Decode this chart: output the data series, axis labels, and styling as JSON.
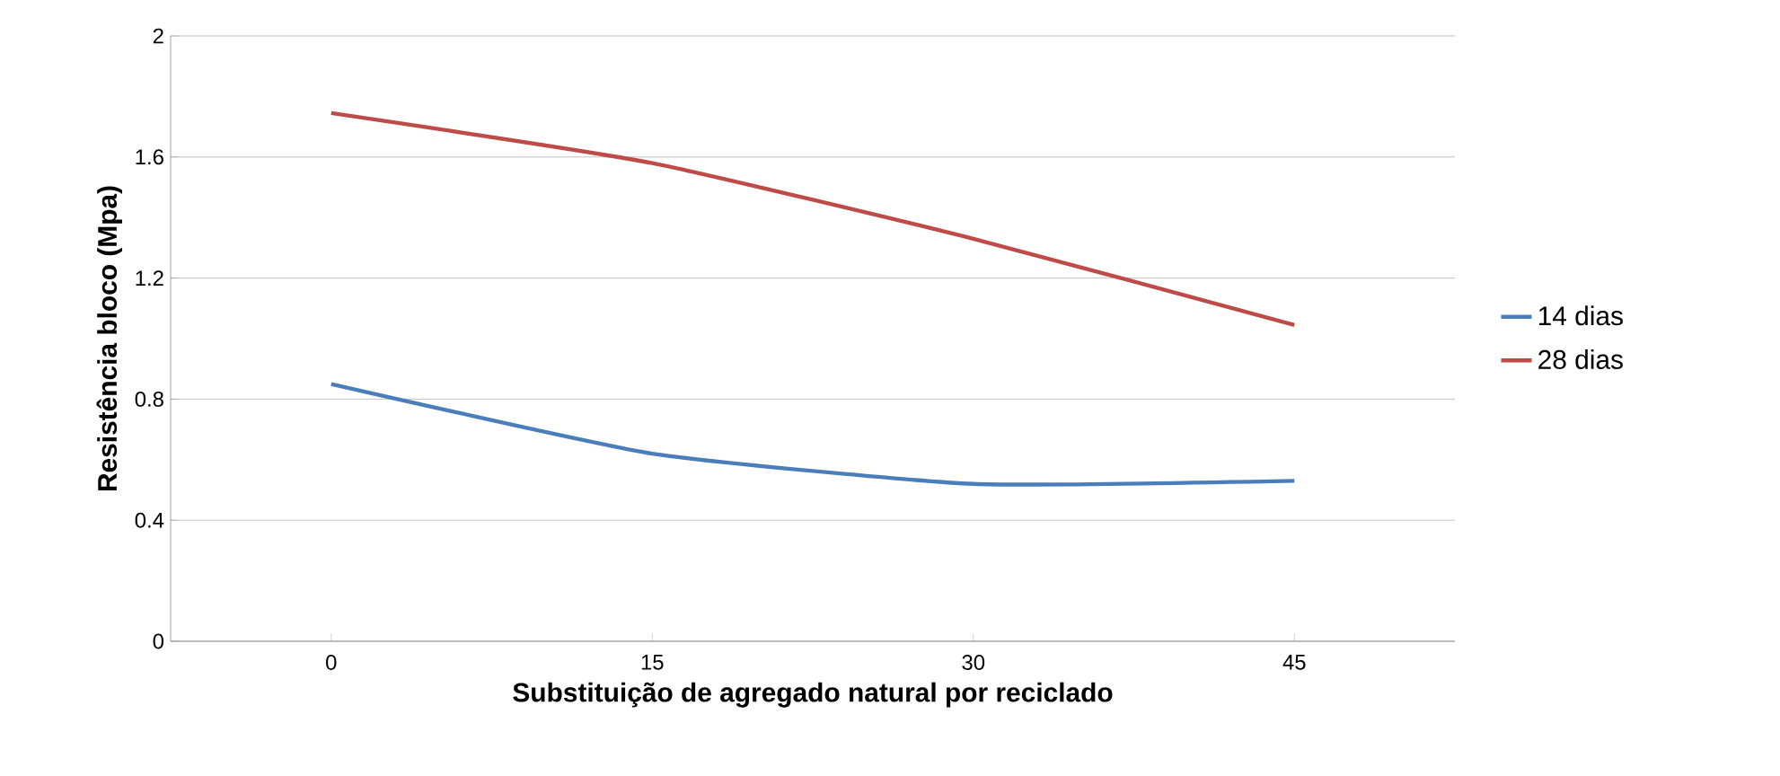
{
  "chart_data": {
    "type": "line",
    "xlabel": "Substituição de agregado natural por reciclado",
    "ylabel": "Resistência bloco (Mpa)",
    "categories": [
      "0",
      "15",
      "30",
      "45"
    ],
    "series": [
      {
        "name": "14 dias",
        "color": "#4a7ebb",
        "values": [
          0.85,
          0.62,
          0.52,
          0.53
        ]
      },
      {
        "name": "28 dias",
        "color": "#be4b48",
        "values": [
          1.745,
          1.58,
          1.33,
          1.045
        ]
      }
    ],
    "ylim": [
      0,
      2
    ],
    "yticks": [
      0,
      0.4,
      0.8,
      1.2,
      1.6,
      2
    ],
    "grid": "y",
    "legend": "right",
    "marker": "none",
    "line_style": "solid"
  }
}
